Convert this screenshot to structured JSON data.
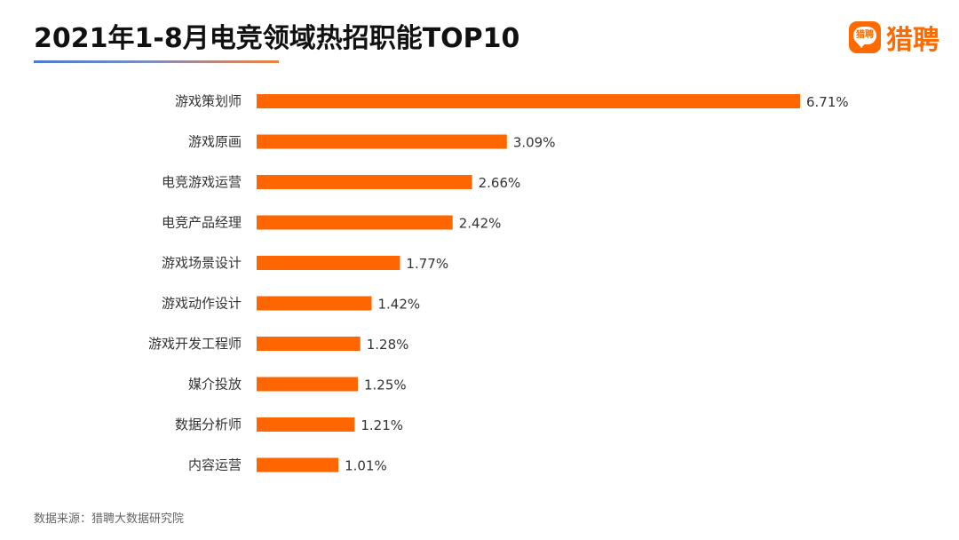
{
  "header": {
    "title": "2021年1-8月电竞领域热招职能TOP10",
    "brand_name": "猎聘",
    "brand_icon_text": "猎聘",
    "brand_color": "#ff6a00"
  },
  "footer": {
    "source": "数据来源：猎聘大数据研究院"
  },
  "chart_data": {
    "type": "bar",
    "orientation": "horizontal",
    "title": "2021年1-8月电竞领域热招职能TOP10",
    "categories": [
      "游戏策划师",
      "游戏原画",
      "电竞游戏运营",
      "电竞产品经理",
      "游戏场景设计",
      "游戏动作设计",
      "游戏开发工程师",
      "媒介投放",
      "数据分析师",
      "内容运营"
    ],
    "values": [
      6.71,
      3.09,
      2.66,
      2.42,
      1.77,
      1.42,
      1.28,
      1.25,
      1.21,
      1.01
    ],
    "value_labels": [
      "6.71%",
      "3.09%",
      "2.66%",
      "2.42%",
      "1.77%",
      "1.42%",
      "1.28%",
      "1.25%",
      "1.21%",
      "1.01%"
    ],
    "unit": "%",
    "xlim": [
      0,
      6.71
    ],
    "grid": false,
    "legend": "none",
    "bar_color": "#ff6600",
    "label_color": "#333333"
  }
}
